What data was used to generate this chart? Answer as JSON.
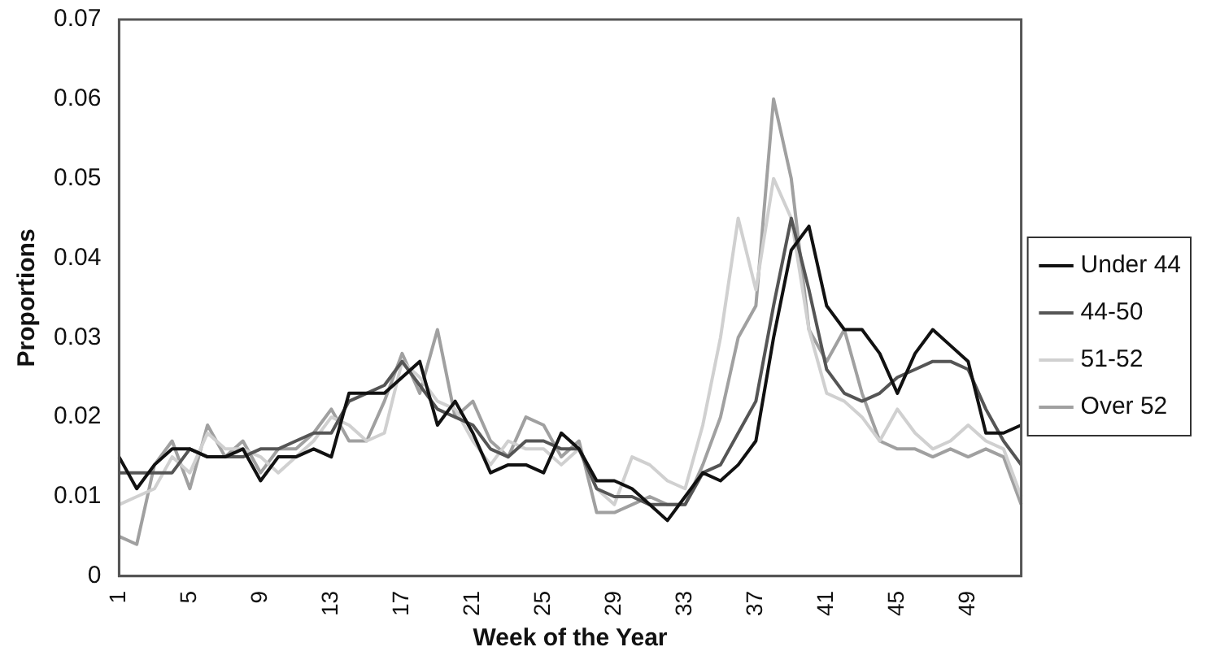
{
  "chart_data": {
    "type": "line",
    "xlabel": "Week of the Year",
    "ylabel": "Proportions",
    "categories": [
      "1",
      null,
      null,
      null,
      "5",
      null,
      null,
      null,
      "9",
      null,
      null,
      null,
      "13",
      null,
      null,
      null,
      "17",
      null,
      null,
      null,
      "21",
      null,
      null,
      null,
      "25",
      null,
      null,
      null,
      "29",
      null,
      null,
      null,
      "33",
      null,
      null,
      null,
      "37",
      null,
      null,
      null,
      "41",
      null,
      null,
      null,
      "45",
      null,
      null,
      null,
      "49",
      null,
      null,
      null
    ],
    "series": [
      {
        "name": "Under 44",
        "color": "#111111",
        "values": [
          0.015,
          0.011,
          0.014,
          0.016,
          0.016,
          0.015,
          0.015,
          0.016,
          0.012,
          0.015,
          0.015,
          0.016,
          0.015,
          0.023,
          0.023,
          0.023,
          0.025,
          0.027,
          0.019,
          0.022,
          0.018,
          0.013,
          0.014,
          0.014,
          0.013,
          0.018,
          0.016,
          0.012,
          0.012,
          0.011,
          0.009,
          0.007,
          0.01,
          0.013,
          0.012,
          0.014,
          0.017,
          0.03,
          0.041,
          0.044,
          0.034,
          0.031,
          0.031,
          0.028,
          0.023,
          0.028,
          0.031,
          0.029,
          0.027,
          0.018,
          0.018,
          0.019
        ]
      },
      {
        "name": "44-50",
        "color": "#555555",
        "values": [
          0.013,
          0.013,
          0.013,
          0.013,
          0.016,
          0.015,
          0.015,
          0.015,
          0.016,
          0.016,
          0.017,
          0.018,
          0.018,
          0.022,
          0.023,
          0.024,
          0.027,
          0.024,
          0.021,
          0.02,
          0.019,
          0.016,
          0.015,
          0.017,
          0.017,
          0.016,
          0.016,
          0.011,
          0.01,
          0.01,
          0.009,
          0.009,
          0.009,
          0.013,
          0.014,
          0.018,
          0.022,
          0.034,
          0.045,
          0.036,
          0.026,
          0.023,
          0.022,
          0.023,
          0.025,
          0.026,
          0.027,
          0.027,
          0.026,
          0.021,
          0.017,
          0.014
        ]
      },
      {
        "name": "51-52",
        "color": "#d0d0d0",
        "values": [
          0.009,
          0.01,
          0.011,
          0.015,
          0.013,
          0.018,
          0.016,
          0.016,
          0.015,
          0.013,
          0.015,
          0.017,
          0.02,
          0.019,
          0.017,
          0.018,
          0.027,
          0.025,
          0.022,
          0.021,
          0.017,
          0.014,
          0.017,
          0.016,
          0.016,
          0.014,
          0.016,
          0.011,
          0.009,
          0.015,
          0.014,
          0.012,
          0.011,
          0.019,
          0.03,
          0.045,
          0.036,
          0.05,
          0.045,
          0.031,
          0.023,
          0.022,
          0.02,
          0.017,
          0.021,
          0.018,
          0.016,
          0.017,
          0.019,
          0.017,
          0.016,
          0.01
        ]
      },
      {
        "name": "Over 52",
        "color": "#a0a0a0",
        "values": [
          0.005,
          0.004,
          0.014,
          0.017,
          0.011,
          0.019,
          0.015,
          0.017,
          0.013,
          0.016,
          0.016,
          0.018,
          0.021,
          0.017,
          0.017,
          0.022,
          0.028,
          0.023,
          0.031,
          0.02,
          0.022,
          0.017,
          0.015,
          0.02,
          0.019,
          0.015,
          0.017,
          0.008,
          0.008,
          0.009,
          0.01,
          0.009,
          0.009,
          0.014,
          0.02,
          0.03,
          0.034,
          0.06,
          0.05,
          0.031,
          0.027,
          0.031,
          0.023,
          0.017,
          0.016,
          0.016,
          0.015,
          0.016,
          0.015,
          0.016,
          0.015,
          0.009
        ]
      }
    ],
    "ylim": [
      0,
      0.07
    ],
    "yticks": [
      0,
      0.01,
      0.02,
      0.03,
      0.04,
      0.05,
      0.06,
      0.07
    ],
    "grid": false,
    "legend": "right",
    "marker": "none",
    "line_style": "solid"
  }
}
